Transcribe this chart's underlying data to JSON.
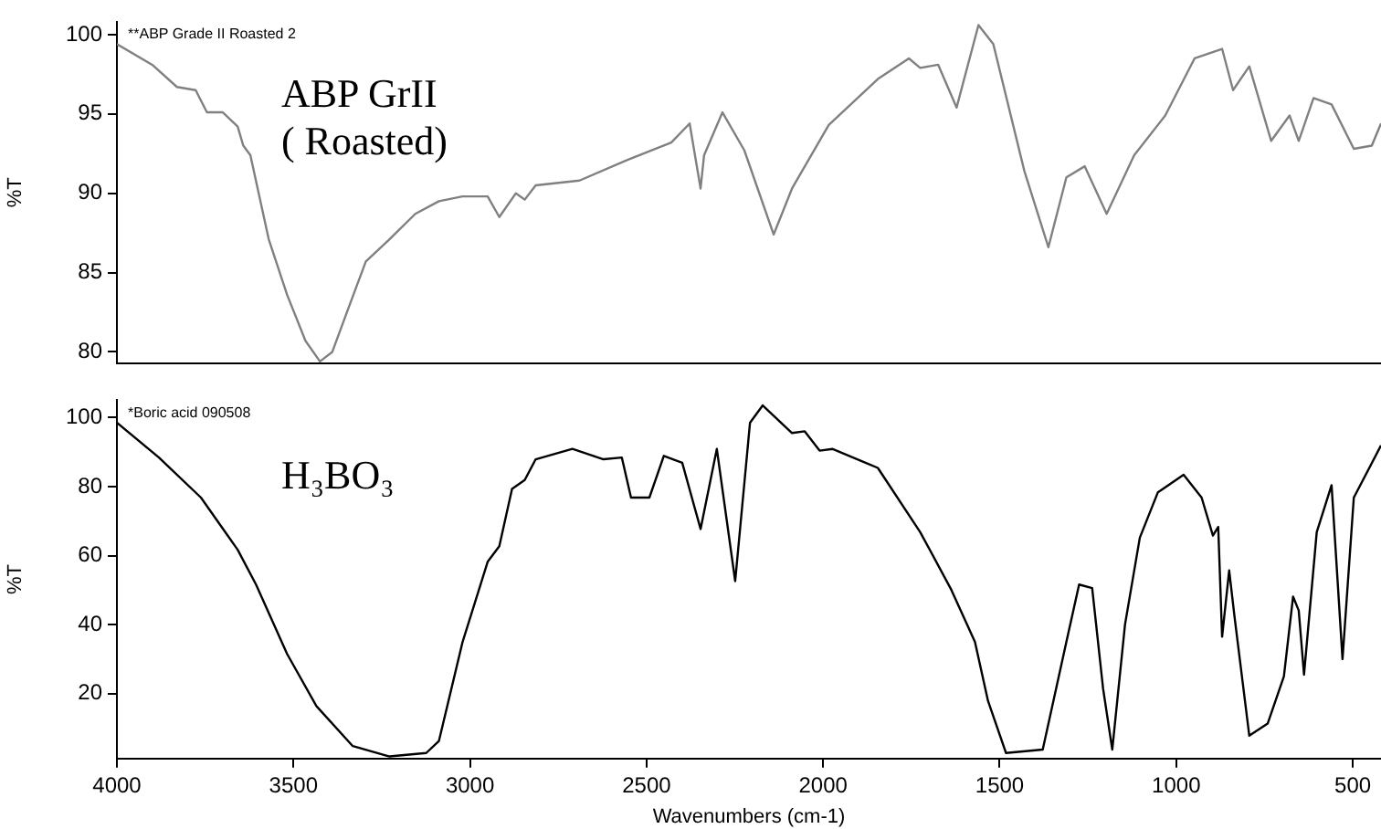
{
  "chart_data": [
    {
      "type": "line",
      "ylabel": "%T",
      "xlim": [
        4000,
        420
      ],
      "ylim": [
        79.3,
        100.8
      ],
      "yticks": [
        80,
        85,
        90,
        95,
        100
      ],
      "tick_labels": "y",
      "grid": false,
      "legend": false,
      "marker": "none",
      "line_style": "solid",
      "annotations": [
        "**ABP Grade II Roasted 2"
      ],
      "series": [
        {
          "name": "ABP GrII\n( Roasted)",
          "color": "#808080",
          "x": [
            4000,
            3900,
            3830,
            3777,
            3745,
            3700,
            3658,
            3642,
            3622,
            3570,
            3518,
            3466,
            3425,
            3390,
            3337,
            3295,
            3228,
            3155,
            3088,
            3021,
            2950,
            2917,
            2870,
            2845,
            2814,
            2690,
            2554,
            2430,
            2378,
            2347,
            2337,
            2285,
            2223,
            2140,
            2088,
            1984,
            1845,
            1757,
            1725,
            1674,
            1622,
            1560,
            1518,
            1430,
            1362,
            1311,
            1259,
            1197,
            1119,
            1031,
            948,
            870,
            839,
            793,
            731,
            679,
            653,
            611,
            560,
            497,
            446,
            420
          ],
          "values": [
            99.4,
            98.1,
            96.7,
            96.5,
            95.1,
            95.1,
            94.2,
            93,
            92.4,
            87.1,
            83.6,
            80.7,
            79.4,
            80,
            83.2,
            85.7,
            87.1,
            88.7,
            89.5,
            89.8,
            89.8,
            88.5,
            90,
            89.6,
            90.5,
            90.8,
            92.1,
            93.2,
            94.4,
            90.3,
            92.4,
            95.1,
            92.7,
            87.4,
            90.3,
            94.3,
            97.2,
            98.5,
            97.9,
            98.1,
            95.4,
            100.6,
            99.4,
            91.4,
            86.6,
            91,
            91.7,
            88.7,
            92.4,
            94.9,
            98.5,
            99.1,
            96.5,
            98,
            93.3,
            94.9,
            93.3,
            96,
            95.6,
            92.8,
            93,
            94.4
          ]
        }
      ]
    },
    {
      "type": "line",
      "xlabel": "Wavenumbers (cm-1)",
      "ylabel": "%T",
      "xlim": [
        4000,
        420
      ],
      "xticks": [
        4000,
        3500,
        3000,
        2500,
        2000,
        1500,
        1000,
        500
      ],
      "ylim": [
        1.2,
        105
      ],
      "yticks": [
        20,
        40,
        60,
        80,
        100
      ],
      "grid": false,
      "legend": false,
      "marker": "none",
      "line_style": "solid",
      "annotations": [
        "*Boric acid 090508"
      ],
      "series": [
        {
          "name": "H₃BO₃",
          "color": "#000000",
          "x": [
            4000,
            3881,
            3762,
            3658,
            3606,
            3518,
            3435,
            3332,
            3228,
            3124,
            3088,
            3021,
            2950,
            2917,
            2881,
            2845,
            2814,
            2710,
            2622,
            2570,
            2544,
            2492,
            2451,
            2399,
            2347,
            2301,
            2249,
            2207,
            2171,
            2088,
            2052,
            2010,
            1974,
            1845,
            1725,
            1637,
            1570,
            1533,
            1482,
            1378,
            1311,
            1275,
            1238,
            1207,
            1181,
            1145,
            1103,
            1052,
            979,
            928,
            896,
            881,
            870,
            850,
            834,
            793,
            741,
            695,
            669,
            653,
            638,
            602,
            560,
            529,
            497,
            420
          ],
          "values": [
            98.5,
            88.4,
            76.8,
            61.7,
            51.6,
            31.5,
            16.4,
            4.8,
            1.8,
            2.8,
            6.3,
            35,
            58.2,
            62.7,
            79.3,
            81.9,
            87.9,
            90.9,
            87.9,
            88.4,
            76.8,
            76.8,
            88.9,
            86.9,
            67.7,
            90.9,
            52.6,
            98.5,
            103.5,
            95.5,
            96,
            90.4,
            90.9,
            85.4,
            66.8,
            50.1,
            35,
            17.9,
            2.8,
            3.8,
            35,
            51.6,
            50.6,
            21.4,
            3.8,
            40,
            65.2,
            78.3,
            83.4,
            76.8,
            65.8,
            68.3,
            36.5,
            55.7,
            41.6,
            7.8,
            11.3,
            25,
            48.1,
            44.1,
            25.5,
            66.8,
            80.4,
            30,
            76.8,
            91.9
          ]
        }
      ]
    }
  ]
}
